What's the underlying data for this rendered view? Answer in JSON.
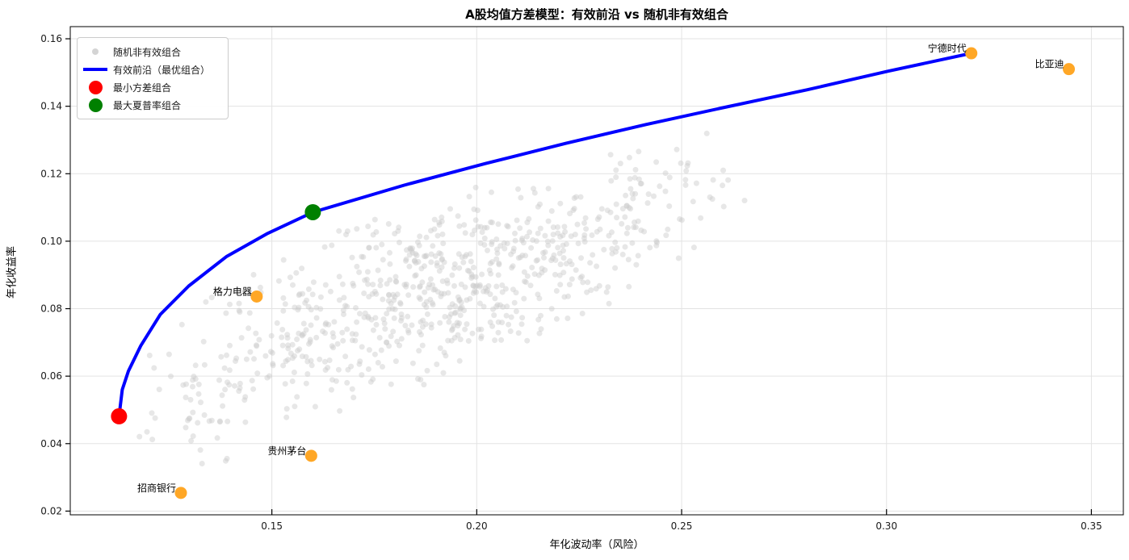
{
  "chart_data": {
    "type": "scatter",
    "title": "A股均值方差模型：有效前沿 vs 随机非有效组合",
    "xlabel": "年化波动率（风险）",
    "ylabel": "年化收益率",
    "xlim": [
      0.1008,
      0.3578
    ],
    "ylim": [
      0.0189,
      0.1636
    ],
    "xticks": [
      0.15,
      0.2,
      0.25,
      0.3,
      0.35
    ],
    "yticks": [
      0.02,
      0.04,
      0.06,
      0.08,
      0.1,
      0.12,
      0.14,
      0.16
    ],
    "grid": true,
    "colors": {
      "frontier": "#0000ff",
      "min_variance": "#ff0000",
      "max_sharpe": "#008000",
      "stock": "#ffa726",
      "random": "#c9c9c9",
      "grid_line": "#e3e3e3",
      "spine": "#000000"
    },
    "legend": {
      "position": "upper-left",
      "items": [
        {
          "label": "随机非有效组合",
          "marker": "small-gray-dot"
        },
        {
          "label": "有效前沿（最优组合）",
          "marker": "blue-line"
        },
        {
          "label": "最小方差组合",
          "marker": "red-dot"
        },
        {
          "label": "最大夏普率组合",
          "marker": "green-dot"
        }
      ]
    },
    "frontier": {
      "name": "有效前沿（最优组合）",
      "points": [
        [
          0.1127,
          0.0481
        ],
        [
          0.1135,
          0.056
        ],
        [
          0.115,
          0.0615
        ],
        [
          0.118,
          0.069
        ],
        [
          0.1228,
          0.0783
        ],
        [
          0.1297,
          0.0867
        ],
        [
          0.139,
          0.0955
        ],
        [
          0.1488,
          0.1022
        ],
        [
          0.16,
          0.1086
        ],
        [
          0.1823,
          0.1166
        ],
        [
          0.202,
          0.123
        ],
        [
          0.2217,
          0.129
        ],
        [
          0.2413,
          0.1346
        ],
        [
          0.261,
          0.1398
        ],
        [
          0.2807,
          0.1449
        ],
        [
          0.3004,
          0.1504
        ],
        [
          0.3207,
          0.1557
        ]
      ]
    },
    "min_variance_point": {
      "label": "最小方差组合",
      "x": 0.1127,
      "y": 0.0481
    },
    "max_sharpe_point": {
      "label": "最大夏普率组合",
      "x": 0.16,
      "y": 0.1086
    },
    "stocks": [
      {
        "name": "宁德时代",
        "x": 0.3207,
        "y": 0.1557
      },
      {
        "name": "比亚迪",
        "x": 0.3445,
        "y": 0.151
      },
      {
        "name": "格力电器",
        "x": 0.1463,
        "y": 0.0836
      },
      {
        "name": "贵州茅台",
        "x": 0.1596,
        "y": 0.0364
      },
      {
        "name": "招商银行",
        "x": 0.1278,
        "y": 0.0254
      }
    ],
    "random_portfolios": {
      "label": "随机非有效组合",
      "count": 800,
      "seed": 42,
      "x_range": [
        0.1125,
        0.276
      ],
      "y_range": [
        0.0295,
        0.138
      ],
      "note": "cloud of random portfolios lying below the efficient frontier"
    }
  }
}
